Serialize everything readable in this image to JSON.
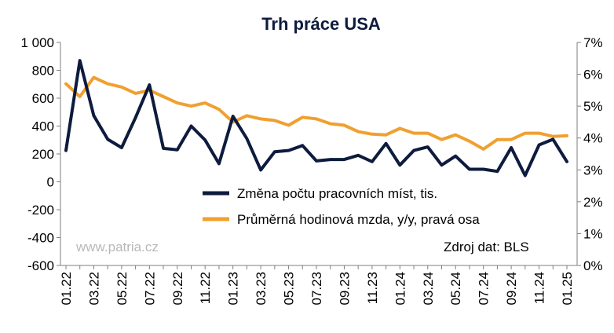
{
  "chart_data": {
    "type": "line",
    "title": "Trh práce USA",
    "categories": [
      "01.22",
      "02.22",
      "03.22",
      "04.22",
      "05.22",
      "06.22",
      "07.22",
      "08.22",
      "09.22",
      "10.22",
      "11.22",
      "12.22",
      "01.23",
      "02.23",
      "03.23",
      "04.23",
      "05.23",
      "06.23",
      "07.23",
      "08.23",
      "09.23",
      "10.23",
      "11.23",
      "12.23",
      "01.24",
      "02.24",
      "03.24",
      "04.24",
      "05.24",
      "06.24",
      "07.24",
      "08.24",
      "09.24",
      "10.24",
      "11.24",
      "12.24",
      "01.25"
    ],
    "x_tick_labels": [
      "01.22",
      "03.22",
      "05.22",
      "07.22",
      "09.22",
      "11.22",
      "01.23",
      "03.23",
      "05.23",
      "07.23",
      "09.23",
      "11.23",
      "01.24",
      "03.24",
      "05.24",
      "07.24",
      "09.24",
      "11.24",
      "01.25"
    ],
    "left_axis": {
      "ylim": [
        -600,
        1000
      ],
      "ticks": [
        -600,
        -400,
        -200,
        0,
        200,
        400,
        600,
        800,
        1000
      ],
      "tick_labels": [
        "-600",
        "-400",
        "-200",
        "0",
        "200",
        "400",
        "600",
        "800",
        "1 000"
      ]
    },
    "right_axis": {
      "ylim": [
        0,
        7
      ],
      "ticks": [
        0,
        1,
        2,
        3,
        4,
        5,
        6,
        7
      ],
      "tick_labels": [
        "0%",
        "1%",
        "2%",
        "3%",
        "4%",
        "5%",
        "6%",
        "7%"
      ]
    },
    "series": [
      {
        "name": "Změna počtu pracovních míst, tis.",
        "axis": "left",
        "color": "#0d1b3e",
        "values": [
          225,
          870,
          475,
          305,
          245,
          460,
          695,
          240,
          230,
          400,
          300,
          130,
          470,
          310,
          85,
          215,
          225,
          260,
          150,
          160,
          160,
          190,
          145,
          275,
          120,
          225,
          250,
          120,
          185,
          90,
          90,
          75,
          245,
          45,
          265,
          305,
          145
        ]
      },
      {
        "name": "Průměrná hodinová mzda, y/y, pravá osa",
        "axis": "right",
        "color": "#f0a030",
        "values": [
          5.7,
          5.3,
          5.9,
          5.7,
          5.6,
          5.4,
          5.5,
          5.3,
          5.1,
          5.0,
          5.1,
          4.9,
          4.5,
          4.7,
          4.6,
          4.55,
          4.4,
          4.65,
          4.6,
          4.45,
          4.4,
          4.2,
          4.12,
          4.1,
          4.3,
          4.15,
          4.15,
          3.95,
          4.1,
          3.9,
          3.65,
          3.95,
          3.95,
          4.15,
          4.15,
          4.05,
          4.07
        ]
      }
    ],
    "legend_position": "center-right",
    "watermark": "www.patria.cz",
    "source": "Zdroj dat: BLS",
    "grid": false
  }
}
